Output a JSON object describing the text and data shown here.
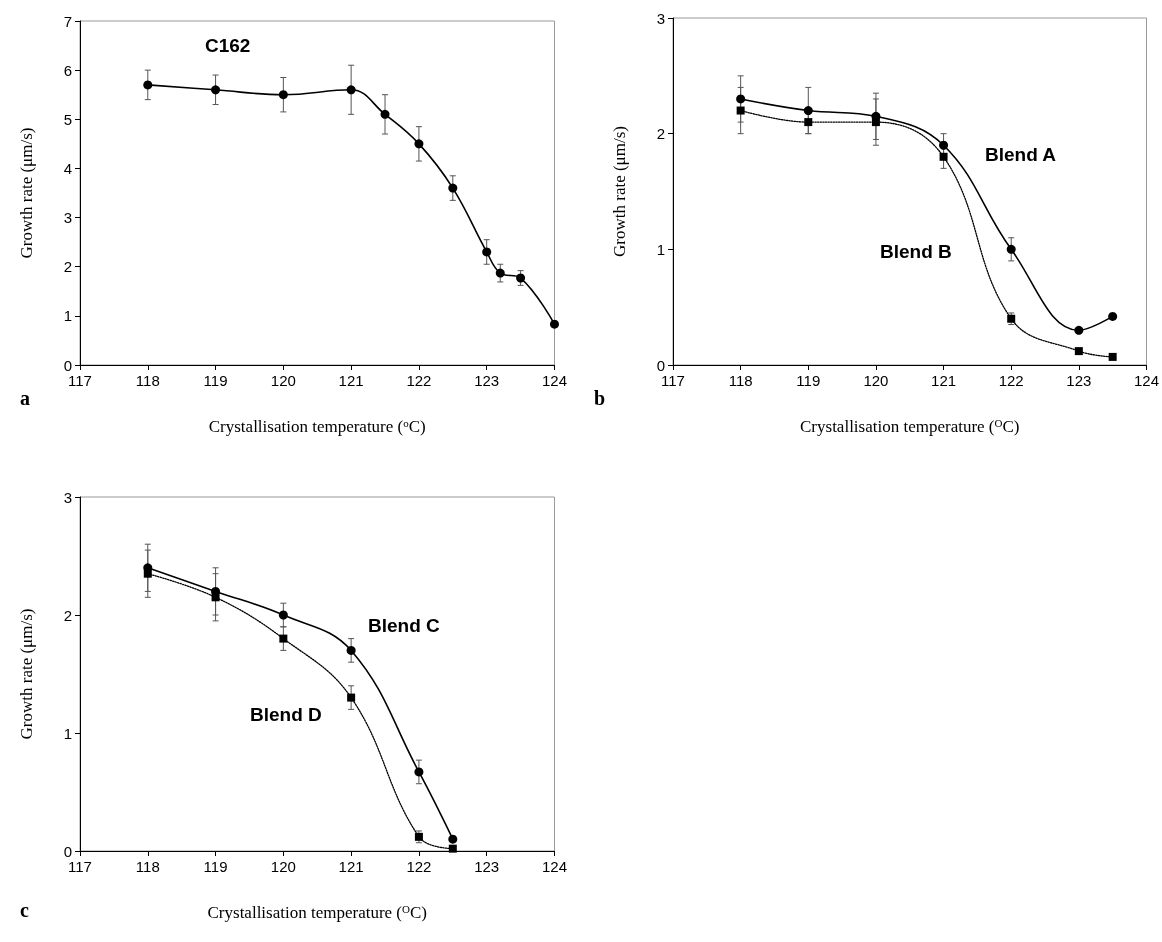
{
  "chart_data": [
    {
      "type": "line",
      "xlabel": "Crystallisation temperature ($^{o}$C)",
      "ylabel": "Growth rate (μm/s)",
      "annotations": [
        "a"
      ],
      "xlim": [
        117,
        124
      ],
      "xticks": [
        117,
        118,
        119,
        120,
        121,
        122,
        123,
        124
      ],
      "ylim": [
        0,
        7
      ],
      "yticks": [
        0,
        1,
        2,
        3,
        4,
        5,
        6,
        7
      ],
      "series": [
        {
          "name": "C162",
          "color": "#000000",
          "marker": "circle",
          "line_style": "solid",
          "x": [
            118,
            119,
            120,
            121,
            121.5,
            122,
            122.5,
            123,
            123.2,
            123.5,
            124
          ],
          "values": [
            5.7,
            5.6,
            5.5,
            5.6,
            5.1,
            4.5,
            3.6,
            2.3,
            1.87,
            1.77,
            0.83
          ],
          "errors": [
            0.3,
            0.3,
            0.35,
            0.5,
            0.4,
            0.35,
            0.25,
            0.25,
            0.18,
            0.15,
            null
          ]
        }
      ]
    },
    {
      "type": "line",
      "xlabel": "Crystallisation temperature ($^{O}$C)",
      "ylabel": "Growth rate (μm/s)",
      "annotations": [
        "b"
      ],
      "xlim": [
        117,
        124
      ],
      "xticks": [
        117,
        118,
        119,
        120,
        121,
        122,
        123,
        124
      ],
      "ylim": [
        0,
        3
      ],
      "yticks": [
        0,
        1,
        2,
        3
      ],
      "series": [
        {
          "name": "Blend A",
          "color": "#000000",
          "marker": "circle",
          "line_style": "solid",
          "x": [
            118,
            119,
            120,
            121,
            122,
            123,
            123.5
          ],
          "values": [
            2.3,
            2.2,
            2.15,
            1.9,
            1.0,
            0.3,
            0.42
          ],
          "errors": [
            0.2,
            0.2,
            0.2,
            0.1,
            0.1,
            null,
            null
          ]
        },
        {
          "name": "Blend B",
          "color": "#000000",
          "marker": "square",
          "line_style": "dotted",
          "x": [
            118,
            119,
            120,
            121,
            122,
            123,
            123.5
          ],
          "values": [
            2.2,
            2.1,
            2.1,
            1.8,
            0.4,
            0.12,
            0.07
          ],
          "errors": [
            0.2,
            0.1,
            0.2,
            0.1,
            0.05,
            null,
            null
          ]
        }
      ]
    },
    {
      "type": "line",
      "xlabel": "Crystallisation temperature ($^{O}$C)",
      "ylabel": "Growth rate (μm/s)",
      "annotations": [
        "c"
      ],
      "xlim": [
        117,
        124
      ],
      "xticks": [
        117,
        118,
        119,
        120,
        121,
        122,
        123,
        124
      ],
      "ylim": [
        0,
        3
      ],
      "yticks": [
        0,
        1,
        2,
        3
      ],
      "series": [
        {
          "name": "Blend C",
          "color": "#000000",
          "marker": "circle",
          "line_style": "solid",
          "x": [
            118,
            119,
            120,
            121,
            122,
            122.5
          ],
          "values": [
            2.4,
            2.2,
            2.0,
            1.7,
            0.67,
            0.1
          ],
          "errors": [
            0.2,
            0.2,
            0.1,
            0.1,
            0.1,
            null
          ]
        },
        {
          "name": "Blend D",
          "color": "#000000",
          "marker": "square",
          "line_style": "dotted",
          "x": [
            118,
            119,
            120,
            121,
            122,
            122.5
          ],
          "values": [
            2.35,
            2.15,
            1.8,
            1.3,
            0.12,
            0.02
          ],
          "errors": [
            0.2,
            0.2,
            0.1,
            0.1,
            0.05,
            null
          ]
        }
      ]
    }
  ]
}
